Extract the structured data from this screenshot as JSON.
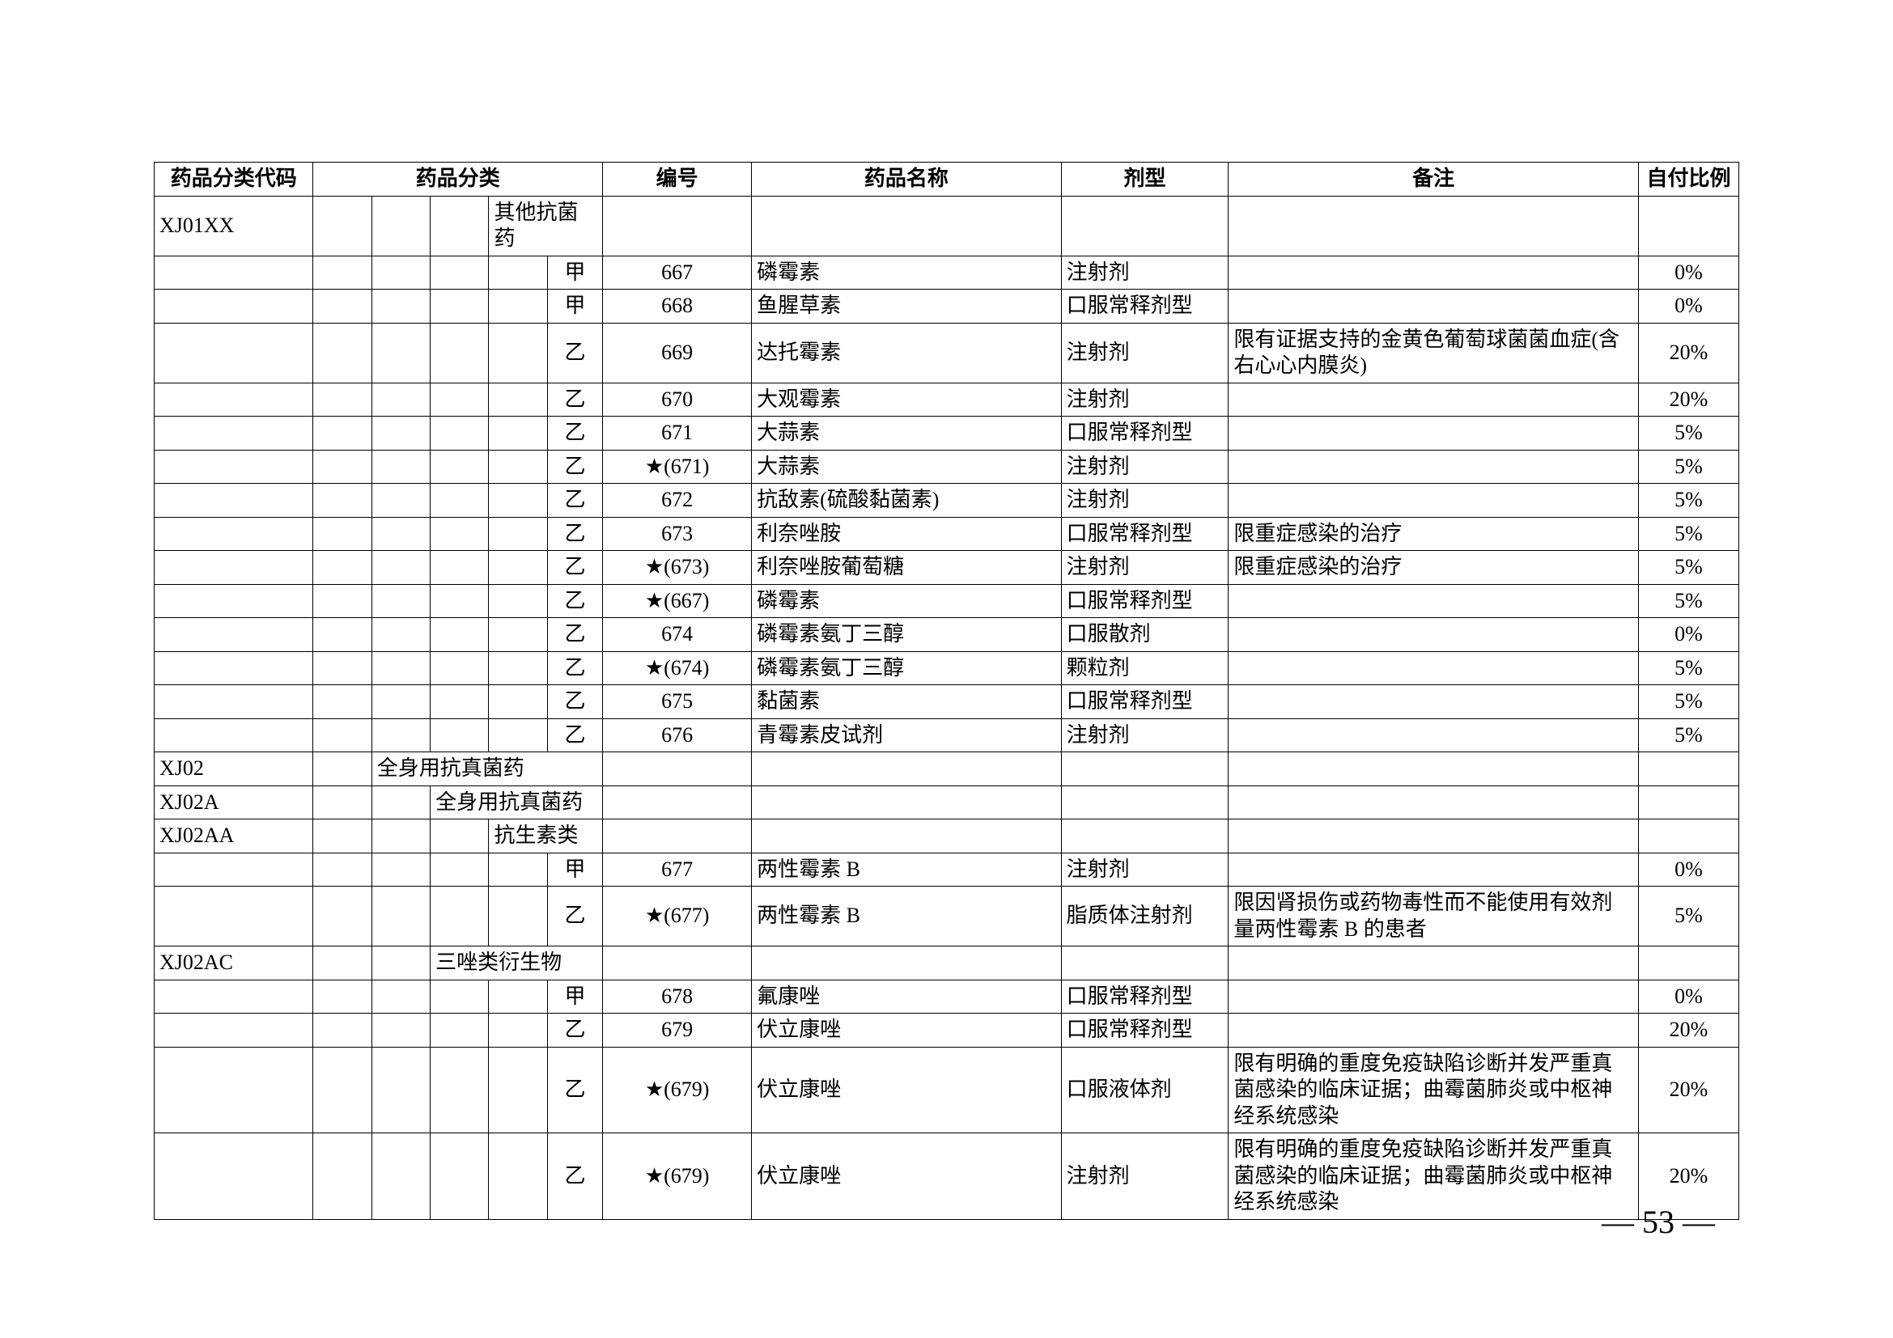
{
  "page_number": "— 53 —",
  "table": {
    "columns": {
      "code": "药品分类代码",
      "cat": "药品分类",
      "num": "编号",
      "name": "药品名称",
      "form": "剂型",
      "note": "备注",
      "ratio": "自付比例"
    },
    "rows": [
      {
        "code": "XJ01XX",
        "cat_level": 3,
        "cat_text": "其他抗菌药",
        "grade": "",
        "num": "",
        "name": "",
        "form": "",
        "note": "",
        "ratio": ""
      },
      {
        "code": "",
        "grade": "甲",
        "num": "667",
        "name": "磷霉素",
        "form": "注射剂",
        "note": "",
        "ratio": "0%"
      },
      {
        "code": "",
        "grade": "甲",
        "num": "668",
        "name": "鱼腥草素",
        "form": "口服常释剂型",
        "note": "",
        "ratio": "0%"
      },
      {
        "code": "",
        "grade": "乙",
        "num": "669",
        "name": "达托霉素",
        "form": "注射剂",
        "note": "限有证据支持的金黄色葡萄球菌菌血症(含右心心内膜炎)",
        "ratio": "20%"
      },
      {
        "code": "",
        "grade": "乙",
        "num": "670",
        "name": "大观霉素",
        "form": "注射剂",
        "note": "",
        "ratio": "20%"
      },
      {
        "code": "",
        "grade": "乙",
        "num": "671",
        "name": "大蒜素",
        "form": "口服常释剂型",
        "note": "",
        "ratio": "5%"
      },
      {
        "code": "",
        "grade": "乙",
        "num": "★(671)",
        "name": "大蒜素",
        "form": "注射剂",
        "note": "",
        "ratio": "5%"
      },
      {
        "code": "",
        "grade": "乙",
        "num": "672",
        "name": "抗敌素(硫酸黏菌素)",
        "form": "注射剂",
        "note": "",
        "ratio": "5%"
      },
      {
        "code": "",
        "grade": "乙",
        "num": "673",
        "name": "利奈唑胺",
        "form": "口服常释剂型",
        "note": "限重症感染的治疗",
        "ratio": "5%"
      },
      {
        "code": "",
        "grade": "乙",
        "num": "★(673)",
        "name": "利奈唑胺葡萄糖",
        "form": "注射剂",
        "note": "限重症感染的治疗",
        "ratio": "5%"
      },
      {
        "code": "",
        "grade": "乙",
        "num": "★(667)",
        "name": "磷霉素",
        "form": "口服常释剂型",
        "note": "",
        "ratio": "5%"
      },
      {
        "code": "",
        "grade": "乙",
        "num": "674",
        "name": "磷霉素氨丁三醇",
        "form": "口服散剂",
        "note": "",
        "ratio": "0%"
      },
      {
        "code": "",
        "grade": "乙",
        "num": "★(674)",
        "name": "磷霉素氨丁三醇",
        "form": "颗粒剂",
        "note": "",
        "ratio": "5%"
      },
      {
        "code": "",
        "grade": "乙",
        "num": "675",
        "name": "黏菌素",
        "form": "口服常释剂型",
        "note": "",
        "ratio": "5%"
      },
      {
        "code": "",
        "grade": "乙",
        "num": "676",
        "name": "青霉素皮试剂",
        "form": "注射剂",
        "note": "",
        "ratio": "5%"
      },
      {
        "code": "XJ02",
        "cat_level": 1,
        "cat_text": "全身用抗真菌药",
        "grade": "",
        "num": "",
        "name": "",
        "form": "",
        "note": "",
        "ratio": ""
      },
      {
        "code": "XJ02A",
        "cat_level": 2,
        "cat_text": "全身用抗真菌药",
        "grade": "",
        "num": "",
        "name": "",
        "form": "",
        "note": "",
        "ratio": ""
      },
      {
        "code": "XJ02AA",
        "cat_level": 3,
        "cat_text": "抗生素类",
        "grade": "",
        "num": "",
        "name": "",
        "form": "",
        "note": "",
        "ratio": ""
      },
      {
        "code": "",
        "grade": "甲",
        "num": "677",
        "name": "两性霉素 B",
        "form": "注射剂",
        "note": "",
        "ratio": "0%"
      },
      {
        "code": "",
        "grade": "乙",
        "num": "★(677)",
        "name": "两性霉素 B",
        "form": "脂质体注射剂",
        "note": "限因肾损伤或药物毒性而不能使用有效剂量两性霉素 B 的患者",
        "ratio": "5%"
      },
      {
        "code": "XJ02AC",
        "cat_level": 2,
        "cat_text": "三唑类衍生物",
        "grade": "",
        "num": "",
        "name": "",
        "form": "",
        "note": "",
        "ratio": ""
      },
      {
        "code": "",
        "grade": "甲",
        "num": "678",
        "name": "氟康唑",
        "form": "口服常释剂型",
        "note": "",
        "ratio": "0%"
      },
      {
        "code": "",
        "grade": "乙",
        "num": "679",
        "name": "伏立康唑",
        "form": "口服常释剂型",
        "note": "",
        "ratio": "20%"
      },
      {
        "code": "",
        "grade": "乙",
        "num": "★(679)",
        "name": "伏立康唑",
        "form": "口服液体剂",
        "note": "限有明确的重度免疫缺陷诊断并发严重真菌感染的临床证据；曲霉菌肺炎或中枢神经系统感染",
        "ratio": "20%"
      },
      {
        "code": "",
        "grade": "乙",
        "num": "★(679)",
        "name": "伏立康唑",
        "form": "注射剂",
        "note": "限有明确的重度免疫缺陷诊断并发严重真菌感染的临床证据；曲霉菌肺炎或中枢神经系统感染",
        "ratio": "20%"
      }
    ]
  }
}
